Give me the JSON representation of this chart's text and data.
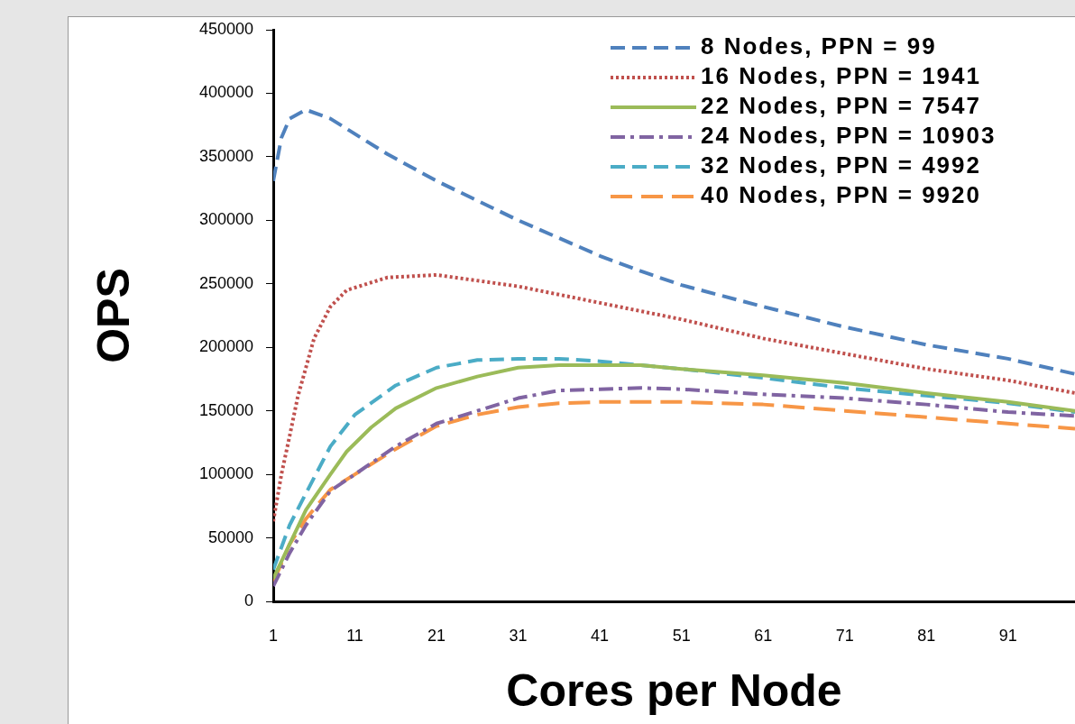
{
  "chart_data": {
    "type": "line",
    "xlabel": "Cores per Node",
    "ylabel": "OPS",
    "xlim": [
      1,
      99.2
    ],
    "xticks": [
      1,
      11,
      21,
      31,
      41,
      51,
      61,
      71,
      81,
      91
    ],
    "ylim": [
      0,
      450000
    ],
    "yticks": [
      0,
      50000,
      100000,
      150000,
      200000,
      250000,
      300000,
      350000,
      400000,
      450000
    ],
    "grid": false,
    "legend": "top right",
    "marker": "none",
    "series": [
      {
        "name": "8 Nodes, PPN = 99",
        "color": "#4f81bd",
        "line_style": "dashed",
        "x": [
          1,
          2,
          3,
          5,
          8,
          10,
          15,
          21,
          31,
          41,
          46,
          51,
          61,
          71,
          81,
          91,
          99.2
        ],
        "values": [
          331000,
          365000,
          380000,
          387000,
          380000,
          372000,
          352000,
          331000,
          300000,
          272000,
          260000,
          249000,
          232000,
          216000,
          202000,
          191000,
          179000
        ]
      },
      {
        "name": "16 Nodes, PPN = 1941",
        "color": "#c0504d",
        "line_style": "dotted",
        "x": [
          1,
          2,
          3,
          4,
          6,
          8,
          10,
          15,
          21,
          31,
          41,
          51,
          61,
          71,
          81,
          91,
          99.2
        ],
        "values": [
          63000,
          100000,
          130000,
          161000,
          207000,
          232000,
          245000,
          255000,
          257000,
          248000,
          235000,
          222000,
          207000,
          195000,
          183000,
          174000,
          164000
        ]
      },
      {
        "name": "22 Nodes, PPN = 7547",
        "color": "#9bbb59",
        "line_style": "solid",
        "x": [
          1,
          3,
          5,
          8,
          10,
          13,
          16,
          21,
          26,
          31,
          36,
          46,
          51,
          61,
          71,
          81,
          91,
          99.2
        ],
        "values": [
          18000,
          45000,
          72000,
          100000,
          118000,
          137000,
          152000,
          168000,
          177000,
          184000,
          186000,
          186000,
          183000,
          178000,
          172000,
          164000,
          157000,
          150000
        ]
      },
      {
        "name": "24 Nodes, PPN = 10903",
        "color": "#8064a2",
        "line_style": "dashdot",
        "x": [
          1,
          3,
          5,
          8,
          11,
          16,
          21,
          26,
          31,
          36,
          41,
          46,
          51,
          61,
          71,
          81,
          91,
          99.2
        ],
        "values": [
          12000,
          38000,
          60000,
          87000,
          100000,
          122000,
          140000,
          150000,
          160000,
          166000,
          167000,
          168000,
          167000,
          163000,
          160000,
          155000,
          149000,
          146000
        ]
      },
      {
        "name": "32 Nodes, PPN = 4992",
        "color": "#4bacc6",
        "line_style": "dashed",
        "x": [
          1,
          3,
          5,
          8,
          11,
          16,
          21,
          26,
          31,
          36,
          41,
          51,
          61,
          71,
          81,
          91,
          99.2
        ],
        "values": [
          25000,
          60000,
          85000,
          122000,
          147000,
          170000,
          184000,
          190000,
          191000,
          191000,
          189000,
          183000,
          176000,
          168000,
          162000,
          156000,
          149000
        ]
      },
      {
        "name": "40 Nodes, PPN = 9920",
        "color": "#f79646",
        "line_style": "longdashed",
        "x": [
          1,
          3,
          5,
          8,
          11,
          16,
          21,
          26,
          31,
          36,
          41,
          51,
          61,
          71,
          81,
          91,
          99.2
        ],
        "values": [
          15000,
          45000,
          65000,
          88000,
          100000,
          120000,
          138000,
          147000,
          153000,
          156000,
          157000,
          157000,
          155000,
          150000,
          145000,
          140000,
          136000
        ]
      }
    ]
  }
}
